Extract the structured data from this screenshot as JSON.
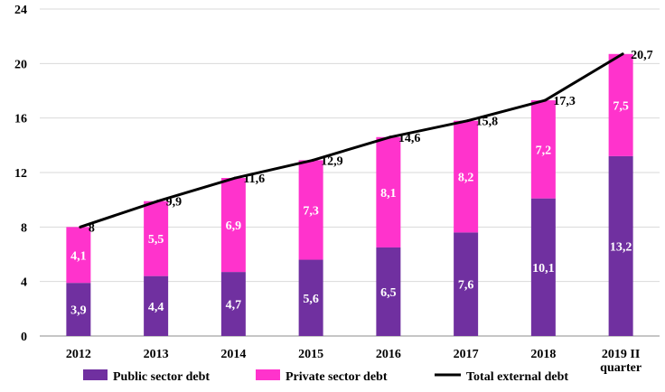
{
  "chart_data": {
    "type": "bar",
    "stacked": true,
    "title": "",
    "xlabel": "",
    "ylabel": "",
    "ylim": [
      0,
      24
    ],
    "yticks": [
      "0",
      "4",
      "8",
      "12",
      "16",
      "20",
      "24"
    ],
    "grid": true,
    "categories": [
      "2012",
      "2013",
      "2014",
      "2015",
      "2016",
      "2017",
      "2018",
      "2019 II quarter"
    ],
    "category_lines": [
      [
        "2012"
      ],
      [
        "2013"
      ],
      [
        "2014"
      ],
      [
        "2015"
      ],
      [
        "2016"
      ],
      [
        "2017"
      ],
      [
        "2018"
      ],
      [
        "2019 II",
        "quarter"
      ]
    ],
    "series": [
      {
        "name": "Public sector debt",
        "values": [
          3.9,
          4.4,
          4.7,
          5.6,
          6.5,
          7.6,
          10.1,
          13.2
        ],
        "labels": [
          "3,9",
          "4,4",
          "4,7",
          "5,6",
          "6,5",
          "7,6",
          "10,1",
          "13,2"
        ],
        "color": "#7030a0"
      },
      {
        "name": "Private sector debt",
        "values": [
          4.1,
          5.5,
          6.9,
          7.3,
          8.1,
          8.2,
          7.2,
          7.5
        ],
        "labels": [
          "4,1",
          "5,5",
          "6,9",
          "7,3",
          "8,1",
          "8,2",
          "7,2",
          "7,5"
        ],
        "color": "#ff33cc"
      }
    ],
    "line": {
      "name": "Total external debt",
      "values": [
        8,
        9.9,
        11.6,
        12.9,
        14.6,
        15.8,
        17.3,
        20.7
      ],
      "labels": [
        "8",
        "9,9",
        "11,6",
        "12,9",
        "14,6",
        "15,8",
        "17,3",
        "20,7"
      ],
      "color": "#000000"
    },
    "legend_position": "bottom"
  }
}
